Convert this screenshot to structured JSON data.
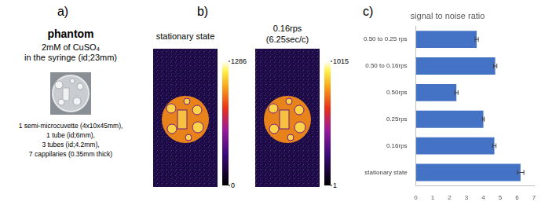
{
  "panels": {
    "a": {
      "letter": "a)",
      "title": "phantom",
      "lines": [
        "2mM of CuSO₄",
        "in the syringe (id;23mm)"
      ],
      "items": [
        "1 semi-microcuvette (4x10x45mm),",
        "1 tube (id;6mm),",
        "3 tubes (id;4.2mm),",
        "7 cappilaries (0.35mm thick)"
      ]
    },
    "b": {
      "letter": "b)",
      "images": [
        {
          "title": [
            "stationary state"
          ],
          "colorbar": {
            "range": [
              0,
              1286
            ],
            "ticks": [
              0,
              1286
            ]
          }
        },
        {
          "title": [
            "0.16rps",
            "(6.25sec/c)"
          ],
          "colorbar": {
            "range": [
              1,
              1015
            ],
            "ticks": [
              1,
              1015
            ]
          }
        }
      ]
    },
    "c": {
      "letter": "c)"
    }
  },
  "chart_data": {
    "type": "bar",
    "orientation": "horizontal",
    "title": "signal to noise ratio",
    "categories": [
      "0.50 to 0.25 rps",
      "0.50 to 0.16rps",
      "0.50rps",
      "0.25rps",
      "0.16rps",
      "stationary state"
    ],
    "values": [
      3.6,
      4.7,
      2.4,
      4.0,
      4.65,
      6.2
    ],
    "errors": [
      0.1,
      0.1,
      0.1,
      0.05,
      0.1,
      0.2
    ],
    "color": "#4472c4",
    "xlim": [
      0,
      7
    ],
    "xticks": [
      0,
      1,
      2,
      3,
      4,
      5,
      6,
      7
    ],
    "grid": false
  }
}
